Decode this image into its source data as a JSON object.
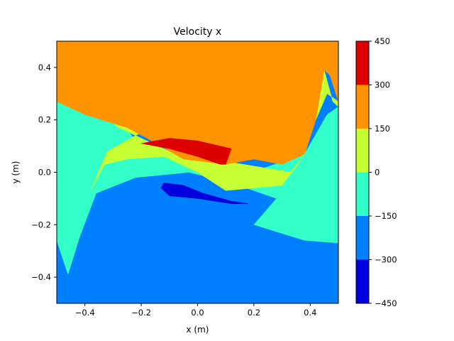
{
  "chart_data": {
    "type": "contourf",
    "title": "Velocity x",
    "xlabel": "x (m)",
    "ylabel": "y (m)",
    "xlim": [
      -0.5,
      0.5
    ],
    "ylim": [
      -0.5,
      0.5
    ],
    "x_ticks": [
      -0.4,
      -0.2,
      0.0,
      0.2,
      0.4
    ],
    "x_tick_labels": [
      "−0.4",
      "−0.2",
      "0.0",
      "0.2",
      "0.4"
    ],
    "y_ticks": [
      -0.4,
      -0.2,
      0.0,
      0.2,
      0.4
    ],
    "y_tick_labels": [
      "−0.4",
      "−0.2",
      "0.0",
      "0.2",
      "0.4"
    ],
    "colorbar": {
      "levels": [
        -450,
        -300,
        -150,
        0,
        150,
        300,
        450
      ],
      "level_labels": [
        "−450",
        "−300",
        "−150",
        "0",
        "150",
        "300",
        "450"
      ],
      "colors": [
        "#0000dd",
        "#0080ff",
        "#33ffc8",
        "#c6ff33",
        "#ff9400",
        "#dd0000"
      ]
    },
    "regions": [
      {
        "name": "band-minus-300-to-minus-150",
        "level_range": [
          -300,
          -150
        ],
        "color": "#0080ff",
        "points": [
          [
            -0.5,
            -0.5
          ],
          [
            0.5,
            -0.5
          ],
          [
            0.5,
            0.5
          ],
          [
            -0.5,
            0.5
          ]
        ]
      },
      {
        "name": "band-minus-150-to-0",
        "level_range": [
          -150,
          0
        ],
        "color": "#33ffc8",
        "points": [
          [
            -0.5,
            0.27
          ],
          [
            -0.3,
            0.22
          ],
          [
            -0.2,
            0.1
          ],
          [
            -0.08,
            0.06
          ],
          [
            0.05,
            0.06
          ],
          [
            0.22,
            0.01
          ],
          [
            0.38,
            0.07
          ],
          [
            0.46,
            0.22
          ],
          [
            0.5,
            0.25
          ],
          [
            0.5,
            -0.27
          ],
          [
            0.38,
            -0.26
          ],
          [
            0.2,
            -0.2
          ],
          [
            0.28,
            -0.1
          ],
          [
            0.12,
            -0.04
          ],
          [
            -0.03,
            0.0
          ],
          [
            -0.22,
            -0.02
          ],
          [
            -0.36,
            -0.08
          ],
          [
            -0.42,
            -0.25
          ],
          [
            -0.46,
            -0.39
          ],
          [
            -0.5,
            -0.26
          ]
        ]
      },
      {
        "name": "band-0-to-150",
        "level_range": [
          0,
          150
        ],
        "color": "#c6ff33",
        "points": [
          [
            -0.5,
            0.27
          ],
          [
            -0.35,
            0.24
          ],
          [
            -0.22,
            0.2
          ],
          [
            -0.17,
            0.17
          ],
          [
            -0.32,
            0.08
          ],
          [
            -0.38,
            -0.07
          ],
          [
            -0.33,
            0.03
          ],
          [
            -0.25,
            0.05
          ],
          [
            -0.12,
            0.06
          ],
          [
            0.0,
            0.0
          ],
          [
            0.1,
            -0.07
          ],
          [
            0.3,
            -0.05
          ],
          [
            0.35,
            0.02
          ],
          [
            0.38,
            0.07
          ],
          [
            0.4,
            0.15
          ],
          [
            0.45,
            0.39
          ],
          [
            0.48,
            0.27
          ],
          [
            0.5,
            0.25
          ],
          [
            0.5,
            0.27
          ],
          [
            0.46,
            0.3
          ],
          [
            0.42,
            0.2
          ],
          [
            0.38,
            0.07
          ],
          [
            0.33,
            0.0
          ],
          [
            0.22,
            0.02
          ],
          [
            0.05,
            0.05
          ],
          [
            -0.08,
            0.07
          ],
          [
            -0.28,
            0.17
          ],
          [
            -0.38,
            0.26
          ]
        ]
      },
      {
        "name": "band-150-to-300",
        "level_range": [
          150,
          300
        ],
        "color": "#ff9400",
        "points": [
          [
            -0.5,
            0.5
          ],
          [
            0.5,
            0.5
          ],
          [
            0.5,
            0.27
          ],
          [
            0.47,
            0.37
          ],
          [
            0.45,
            0.39
          ],
          [
            0.42,
            0.2
          ],
          [
            0.38,
            0.07
          ],
          [
            0.3,
            0.03
          ],
          [
            0.2,
            0.05
          ],
          [
            0.1,
            0.03
          ],
          [
            -0.05,
            0.05
          ],
          [
            -0.18,
            0.13
          ],
          [
            -0.25,
            0.17
          ],
          [
            -0.4,
            0.22
          ],
          [
            -0.5,
            0.27
          ]
        ]
      },
      {
        "name": "band-300-to-450",
        "level_range": [
          300,
          450
        ],
        "color": "#dd0000",
        "points": [
          [
            -0.2,
            0.11
          ],
          [
            -0.1,
            0.13
          ],
          [
            0.0,
            0.12
          ],
          [
            0.08,
            0.1
          ],
          [
            0.12,
            0.09
          ],
          [
            0.1,
            0.03
          ],
          [
            0.08,
            0.03
          ],
          [
            0.0,
            0.06
          ],
          [
            -0.1,
            0.09
          ],
          [
            -0.2,
            0.11
          ]
        ]
      },
      {
        "name": "band-minus-450-to-minus-300",
        "level_range": [
          -450,
          -300
        ],
        "color": "#0000dd",
        "points": [
          [
            -0.12,
            -0.04
          ],
          [
            -0.05,
            -0.05
          ],
          [
            0.02,
            -0.08
          ],
          [
            0.12,
            -0.11
          ],
          [
            0.18,
            -0.12
          ],
          [
            0.12,
            -0.12
          ],
          [
            0.0,
            -0.1
          ],
          [
            -0.1,
            -0.09
          ],
          [
            -0.13,
            -0.06
          ],
          [
            -0.12,
            -0.04
          ]
        ]
      }
    ]
  }
}
